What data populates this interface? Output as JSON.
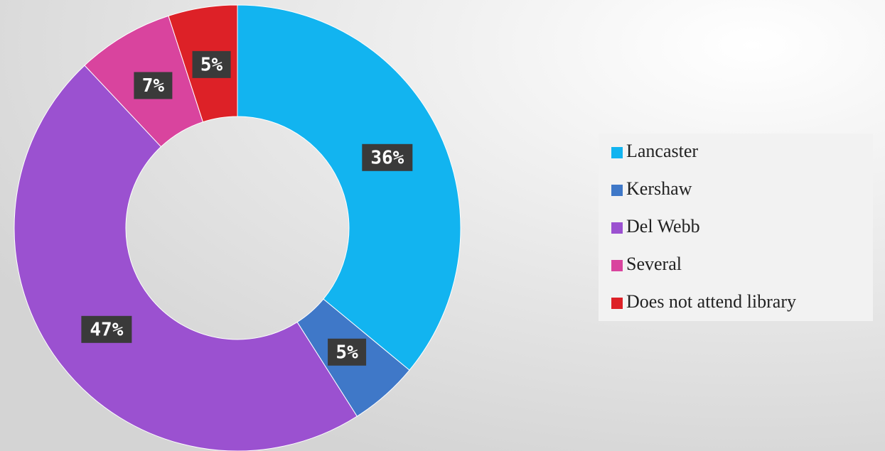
{
  "chart_data": {
    "type": "donut",
    "categories": [
      "Lancaster",
      "Kershaw",
      "Del Webb",
      "Several",
      "Does not attend library"
    ],
    "values": [
      36,
      5,
      47,
      7,
      5
    ],
    "value_labels": [
      "36%",
      "5%",
      "47%",
      "7%",
      "5%"
    ],
    "colors": [
      "#12b4f0",
      "#3f78c8",
      "#9b51d0",
      "#d9449e",
      "#dd2127"
    ],
    "legend": "right"
  }
}
